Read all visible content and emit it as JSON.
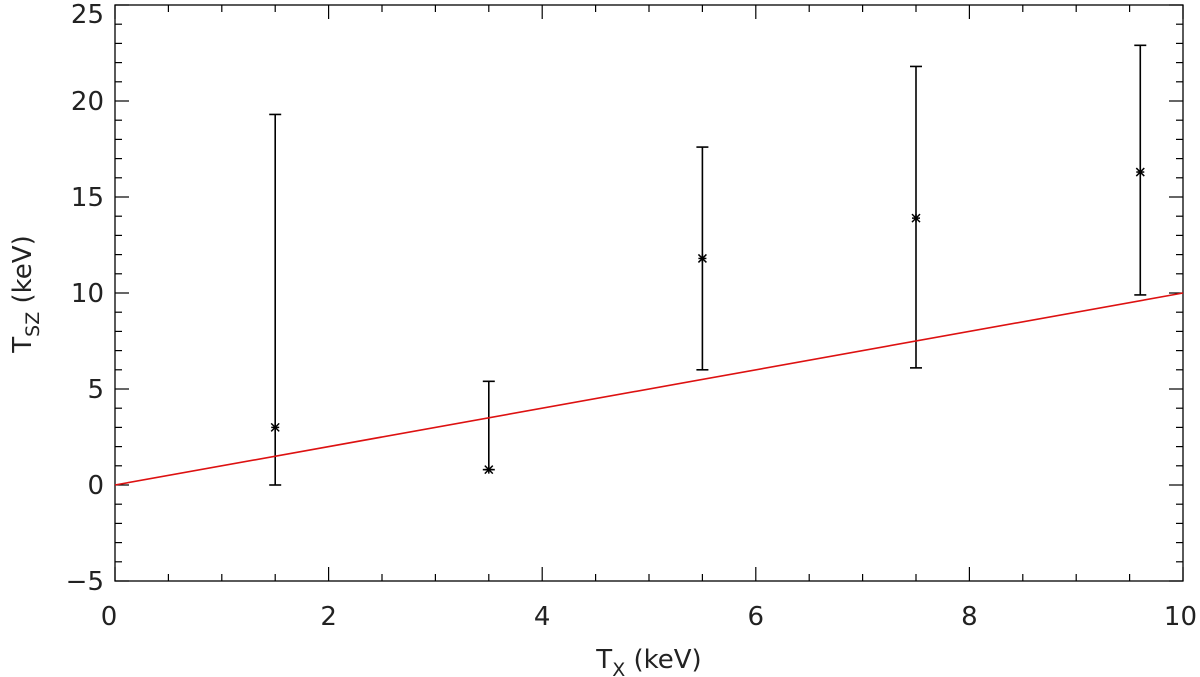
{
  "chart_data": {
    "type": "scatter",
    "xlabel": {
      "main": "T",
      "sub": "X",
      "unit": " (keV)"
    },
    "ylabel": {
      "main": "T",
      "sub": "SZ",
      "unit": " (keV)"
    },
    "xlim": [
      0,
      10
    ],
    "ylim": [
      -5,
      25
    ],
    "x_ticks": [
      0,
      2,
      4,
      6,
      8,
      10
    ],
    "x_tick_labels": [
      "0",
      "2",
      "4",
      "6",
      "8",
      "10"
    ],
    "x_minor_step": 0.5,
    "y_ticks": [
      -5,
      0,
      5,
      10,
      15,
      20,
      25
    ],
    "y_tick_labels": [
      "−5",
      "0",
      "5",
      "10",
      "15",
      "20",
      "25"
    ],
    "y_minor_step": 1,
    "grid": false,
    "series": [
      {
        "kind": "errorbar",
        "color": "#000000",
        "marker": "asterisk",
        "points": [
          {
            "x": 1.5,
            "y": 3.0,
            "ylow": 0.0,
            "yhigh": 19.3
          },
          {
            "x": 3.5,
            "y": 0.8,
            "ylow": 0.8,
            "yhigh": 5.4
          },
          {
            "x": 5.5,
            "y": 11.8,
            "ylow": 6.0,
            "yhigh": 17.6
          },
          {
            "x": 7.5,
            "y": 13.9,
            "ylow": 6.1,
            "yhigh": 21.8
          },
          {
            "x": 9.6,
            "y": 16.3,
            "ylow": 9.9,
            "yhigh": 22.9
          }
        ]
      },
      {
        "kind": "line",
        "color": "#dd1111",
        "x": [
          0,
          10
        ],
        "y": [
          0,
          10
        ]
      }
    ]
  }
}
